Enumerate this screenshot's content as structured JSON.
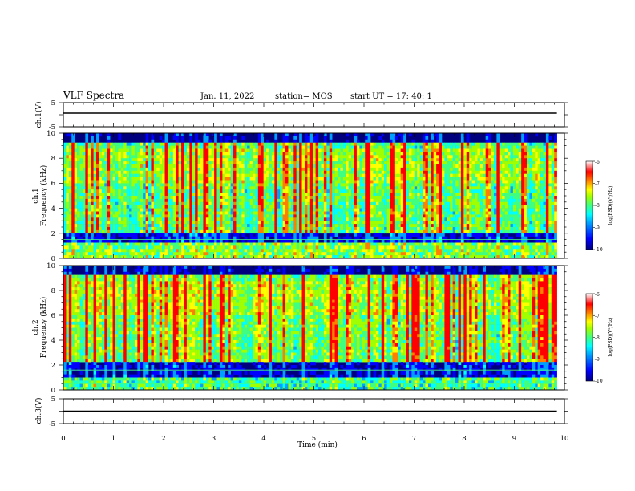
{
  "header": {
    "title": "VLF Spectra",
    "date": "Jan. 11, 2022",
    "station": "station= MOS",
    "start": "start  UT  =   17: 40: 1"
  },
  "chart_data": [
    {
      "id": "ch1-waveform",
      "type": "line",
      "ylabel": "ch.1(V)",
      "ylim": [
        -5,
        5
      ],
      "yticks": [
        "5",
        "-5"
      ],
      "xlim": [
        0,
        10
      ],
      "series": [
        {
          "x": [
            0,
            9.85
          ],
          "y": [
            0,
            0
          ]
        }
      ]
    },
    {
      "id": "ch1-spectrogram",
      "type": "heatmap",
      "ylabel_top": "ch.1",
      "ylabel": "Frequency (kHz)",
      "ylim": [
        0,
        10
      ],
      "yticks": [
        "0",
        "2",
        "4",
        "6",
        "8",
        "10"
      ],
      "xlim": [
        0,
        10
      ],
      "data_end_min": 9.85,
      "colorbar": {
        "label": "log(PSD)(V²/Hz)",
        "ticks": [
          "-6",
          "-7",
          "-8",
          "-9",
          "-10"
        ],
        "range": [
          -10,
          -6
        ]
      }
    },
    {
      "id": "ch2-spectrogram",
      "type": "heatmap",
      "ylabel_top": "ch.2",
      "ylabel": "Frequency (kHz)",
      "ylim": [
        0,
        10
      ],
      "yticks": [
        "0",
        "2",
        "4",
        "6",
        "8",
        "10"
      ],
      "xlim": [
        0,
        10
      ],
      "data_end_min": 9.85,
      "colorbar": {
        "label": "log(PSD)(V²/Hz)",
        "ticks": [
          "-6",
          "-7",
          "-8",
          "-9",
          "-10"
        ],
        "range": [
          -10,
          -6
        ]
      }
    },
    {
      "id": "ch3-waveform",
      "type": "line",
      "ylabel": "ch.3(V)",
      "ylim": [
        -5,
        5
      ],
      "yticks": [
        "5",
        "-5"
      ],
      "xlim": [
        0,
        10
      ],
      "xlabel": "Time  (min)",
      "xticks": [
        "0",
        "1",
        "2",
        "3",
        "4",
        "5",
        "6",
        "7",
        "8",
        "9",
        "10"
      ],
      "series": [
        {
          "x": [
            0,
            9.85
          ],
          "y": [
            0,
            0
          ]
        }
      ]
    }
  ],
  "colors": {
    "jet": [
      "#00007f",
      "#0000ff",
      "#00a0ff",
      "#00ffff",
      "#40ff80",
      "#a0ff00",
      "#ffff00",
      "#ff8000",
      "#ff0000",
      "#ffffff"
    ]
  }
}
